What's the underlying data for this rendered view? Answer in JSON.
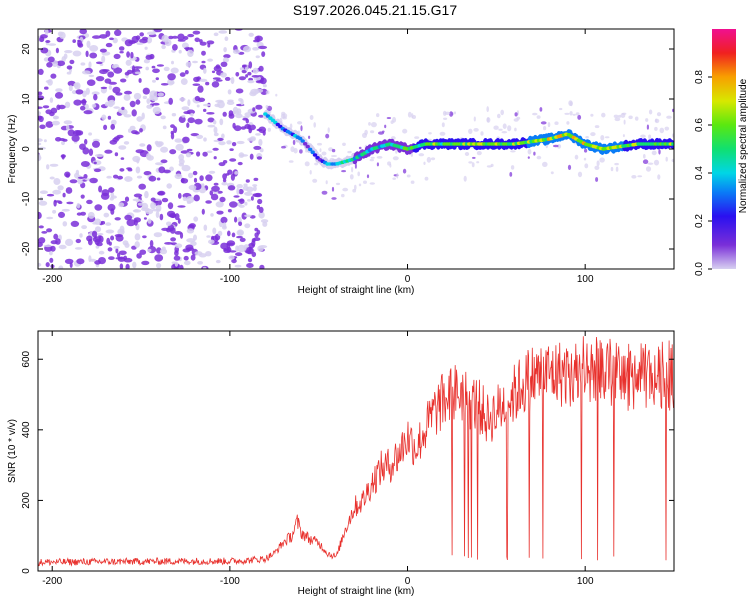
{
  "title": "S197.2026.045.21.15.G17",
  "colors": {
    "snr_line": "#e8302c",
    "background": "#ffffff",
    "axis": "#000000"
  },
  "chart_data": [
    {
      "type": "heatmap",
      "title": "S197.2026.045.21.15.G17",
      "xlabel": "Height of straight line (km)",
      "ylabel": "Frequency (Hz)",
      "xlim": [
        -208,
        150
      ],
      "ylim": [
        -24,
        24
      ],
      "xticks": [
        -200,
        -100,
        0,
        100
      ],
      "yticks": [
        -20,
        -10,
        0,
        10,
        20
      ],
      "colorbar": {
        "label": "Normalized spectral amplitude",
        "range": [
          0,
          1
        ],
        "ticks": [
          0.0,
          0.2,
          0.4,
          0.6,
          0.8
        ]
      },
      "ridge": {
        "x": [
          -80,
          -70,
          -60,
          -50,
          -45,
          -40,
          -30,
          -20,
          -10,
          0,
          10,
          20,
          40,
          60,
          80,
          90,
          100,
          110,
          130,
          150
        ],
        "freq": [
          7,
          4,
          2,
          -2,
          -3,
          -3,
          -2,
          0,
          1,
          0,
          1,
          1,
          1,
          1,
          2,
          3,
          1,
          0,
          1,
          1
        ],
        "amplitude": [
          0.3,
          0.35,
          0.3,
          0.25,
          0.35,
          0.4,
          0.45,
          0.45,
          0.5,
          0.55,
          0.6,
          0.6,
          0.65,
          0.65,
          0.7,
          0.75,
          0.7,
          0.7,
          0.65,
          0.6
        ]
      },
      "noise_region_x": [
        -208,
        -80
      ]
    },
    {
      "type": "line",
      "xlabel": "Height of straight line (km)",
      "ylabel": "SNR (10 * v/v)",
      "xlim": [
        -208,
        150
      ],
      "ylim": [
        0,
        680
      ],
      "xticks": [
        -200,
        -100,
        0,
        100
      ],
      "yticks": [
        0,
        200,
        400,
        600
      ],
      "series": [
        {
          "name": "SNR",
          "x": [
            -208,
            -180,
            -150,
            -120,
            -100,
            -90,
            -80,
            -75,
            -70,
            -65,
            -62,
            -60,
            -55,
            -50,
            -45,
            -40,
            -35,
            -30,
            -25,
            -20,
            -15,
            -10,
            -5,
            0,
            5,
            10,
            15,
            20,
            25,
            30,
            35,
            40,
            45,
            50,
            55,
            60,
            65,
            70,
            80,
            90,
            100,
            110,
            120,
            130,
            140,
            150
          ],
          "y": [
            25,
            26,
            27,
            28,
            28,
            30,
            35,
            50,
            80,
            100,
            140,
            110,
            90,
            80,
            50,
            40,
            120,
            180,
            200,
            250,
            290,
            300,
            330,
            380,
            350,
            400,
            450,
            480,
            500,
            510,
            480,
            470,
            430,
            450,
            480,
            500,
            530,
            550,
            560,
            560,
            550,
            560,
            550,
            550,
            550,
            550
          ]
        }
      ]
    }
  ]
}
